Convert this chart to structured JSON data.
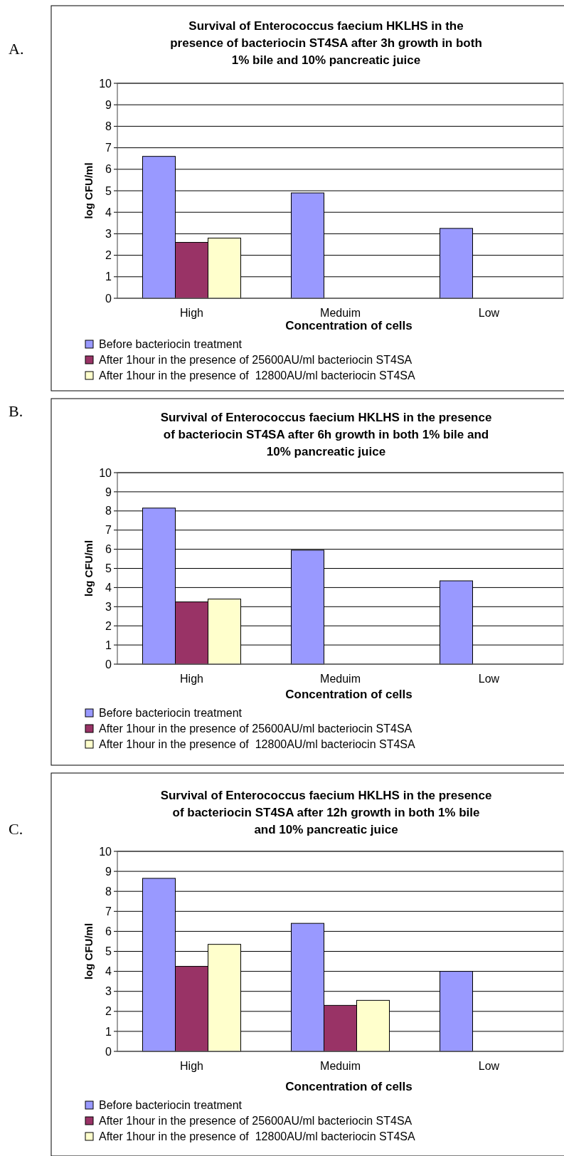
{
  "chart_data": [
    {
      "type": "bar",
      "title": "Survival of Enterococcus faecium HKLHS in the\npresence of bacteriocin ST4SA after 3h growth in both\n1% bile and 10% pancreatic juice",
      "xlabel": "Concentration of cells",
      "ylabel": "log CFU/ml",
      "annotations": [
        "A."
      ],
      "categories": [
        "High",
        "Meduim",
        "Low"
      ],
      "ylim": [
        0,
        10
      ],
      "yticks": [
        0,
        1,
        2,
        3,
        4,
        5,
        6,
        7,
        8,
        9,
        10
      ],
      "grid": "y",
      "legend": "bottom",
      "series": [
        {
          "name": "Before bacteriocin treatment",
          "color": "#9999ff",
          "values": [
            6.6,
            4.9,
            3.25
          ]
        },
        {
          "name": "After 1hour in the presence of 25600AU/ml bacteriocin ST4SA",
          "color": "#993366",
          "values": [
            2.6,
            null,
            null
          ]
        },
        {
          "name": "After 1hour in the presence of  12800AU/ml bacteriocin ST4SA",
          "color": "#ffffcc",
          "values": [
            2.8,
            null,
            null
          ]
        }
      ]
    },
    {
      "type": "bar",
      "title": "Survival of Enterococcus faecium HKLHS in the presence\nof bacteriocin ST4SA after 6h growth in both 1% bile and\n10% pancreatic juice",
      "xlabel": "Concentration of cells",
      "ylabel": "log CFU/ml",
      "annotations": [
        "B."
      ],
      "categories": [
        "High",
        "Meduim",
        "Low"
      ],
      "ylim": [
        0,
        10
      ],
      "yticks": [
        0,
        1,
        2,
        3,
        4,
        5,
        6,
        7,
        8,
        9,
        10
      ],
      "grid": "y",
      "legend": "bottom",
      "series": [
        {
          "name": "Before bacteriocin treatment",
          "color": "#9999ff",
          "values": [
            8.15,
            5.95,
            4.35
          ]
        },
        {
          "name": "After 1hour in the presence of 25600AU/ml bacteriocin ST4SA",
          "color": "#993366",
          "values": [
            3.25,
            null,
            null
          ]
        },
        {
          "name": "After 1hour in the presence of  12800AU/ml bacteriocin ST4SA",
          "color": "#ffffcc",
          "values": [
            3.4,
            null,
            null
          ]
        }
      ]
    },
    {
      "type": "bar",
      "title": "Survival of Enterococcus faecium HKLHS in the presence\nof bacteriocin ST4SA after 12h growth in both 1% bile\nand 10% pancreatic juice",
      "xlabel": "Concentration of cells",
      "ylabel": "log CFU/ml",
      "annotations": [
        "C."
      ],
      "categories": [
        "High",
        "Meduim",
        "Low"
      ],
      "ylim": [
        0,
        10
      ],
      "yticks": [
        0,
        1,
        2,
        3,
        4,
        5,
        6,
        7,
        8,
        9,
        10
      ],
      "grid": "y",
      "legend": "bottom",
      "series": [
        {
          "name": "Before bacteriocin treatment",
          "color": "#9999ff",
          "values": [
            8.65,
            6.4,
            4.0
          ]
        },
        {
          "name": "After 1hour in the presence of 25600AU/ml bacteriocin ST4SA",
          "color": "#993366",
          "values": [
            4.25,
            2.3,
            null
          ]
        },
        {
          "name": "After 1hour in the presence of  12800AU/ml bacteriocin ST4SA",
          "color": "#ffffcc",
          "values": [
            5.35,
            2.55,
            null
          ]
        }
      ]
    }
  ]
}
